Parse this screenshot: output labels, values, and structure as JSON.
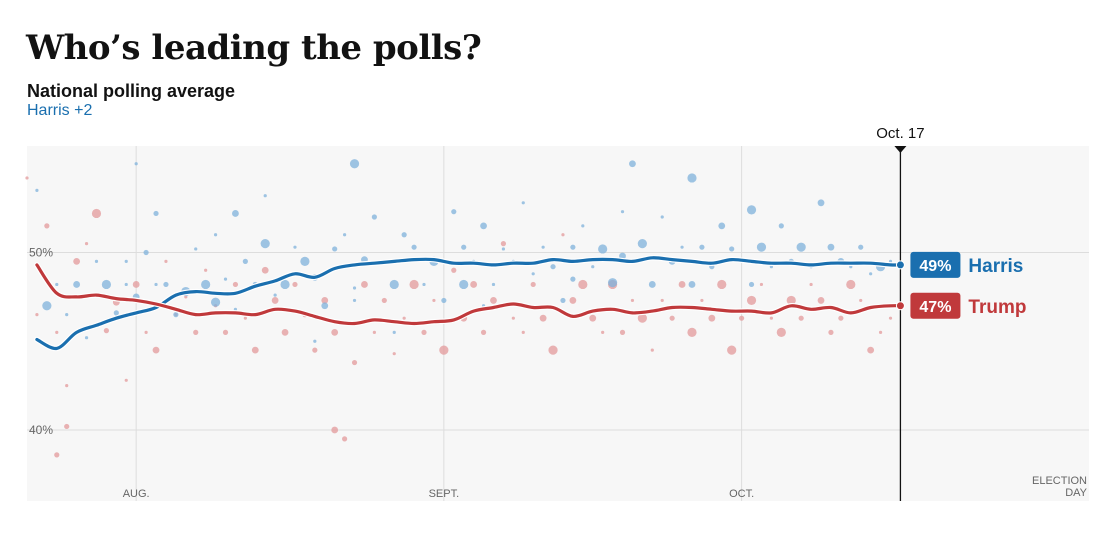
{
  "header": {
    "title": "Who’s leading the polls?",
    "subtitle": "National polling average",
    "leader": "Harris +2"
  },
  "colors": {
    "harris": "#1a6faf",
    "trump": "#c0393b",
    "harris_dot": "#7fb2db",
    "trump_dot": "#e39a9b",
    "background": "#f7f7f7",
    "grid": "#dddddd"
  },
  "chart_data": {
    "type": "line",
    "title": "Who’s leading the polls?",
    "subtitle": "National polling average",
    "x_unit": "days from Jul 21, 2024",
    "x_range": [
      0,
      107
    ],
    "ylim": [
      36,
      56
    ],
    "y_ticks": [
      {
        "value": 40,
        "label": "40%"
      },
      {
        "value": 50,
        "label": "50%"
      }
    ],
    "x_ticks": [
      {
        "day": 11,
        "label": "AUG."
      },
      {
        "day": 42,
        "label": "SEPT."
      },
      {
        "day": 72,
        "label": "OCT."
      }
    ],
    "end_label": [
      "ELECTION",
      "DAY"
    ],
    "today": {
      "day": 88,
      "label": "Oct. 17"
    },
    "grid": true,
    "series": [
      {
        "name": "Harris",
        "key": "harris",
        "final_label": "49%",
        "x": [
          1,
          3,
          5,
          7,
          9,
          11,
          13,
          15,
          17,
          19,
          21,
          23,
          25,
          27,
          29,
          31,
          33,
          35,
          37,
          39,
          41,
          43,
          45,
          47,
          49,
          51,
          53,
          55,
          57,
          59,
          61,
          63,
          65,
          67,
          69,
          71,
          73,
          75,
          77,
          79,
          81,
          83,
          85,
          87,
          88
        ],
        "values": [
          45.1,
          44.6,
          45.5,
          45.9,
          46.3,
          46.6,
          46.9,
          47.6,
          47.8,
          47.7,
          47.7,
          48.1,
          48.4,
          48.8,
          48.6,
          49.1,
          49.3,
          49.4,
          49.5,
          49.6,
          49.6,
          49.4,
          49.4,
          49.3,
          49.4,
          49.4,
          49.6,
          49.5,
          49.6,
          49.6,
          49.5,
          49.7,
          49.6,
          49.5,
          49.4,
          49.6,
          49.5,
          49.4,
          49.4,
          49.3,
          49.4,
          49.4,
          49.4,
          49.3,
          49.3
        ]
      },
      {
        "name": "Trump",
        "key": "trump",
        "final_label": "47%",
        "x": [
          1,
          3,
          5,
          7,
          9,
          11,
          13,
          15,
          17,
          19,
          21,
          23,
          25,
          27,
          29,
          31,
          33,
          35,
          37,
          39,
          41,
          43,
          45,
          47,
          49,
          51,
          53,
          55,
          57,
          59,
          61,
          63,
          65,
          67,
          69,
          71,
          73,
          75,
          77,
          79,
          81,
          83,
          85,
          87,
          88
        ],
        "values": [
          49.3,
          47.7,
          47.5,
          47.6,
          47.4,
          47.3,
          47.1,
          46.8,
          46.5,
          46.6,
          46.6,
          46.5,
          46.8,
          46.7,
          46.4,
          46.1,
          46.0,
          46.2,
          46.1,
          46.0,
          46.1,
          46.2,
          46.7,
          46.9,
          47.1,
          46.9,
          46.9,
          46.4,
          46.7,
          46.8,
          46.6,
          46.7,
          46.9,
          46.9,
          46.8,
          46.7,
          46.7,
          46.6,
          47.0,
          46.8,
          46.9,
          46.6,
          46.9,
          47.0,
          47.0
        ]
      }
    ],
    "polls": {
      "harris": [
        [
          1,
          53.5
        ],
        [
          2,
          47
        ],
        [
          3,
          48.2
        ],
        [
          4,
          46.5
        ],
        [
          5,
          48.2
        ],
        [
          6,
          45.2
        ],
        [
          7,
          49.5
        ],
        [
          8,
          48.2
        ],
        [
          9,
          46.6
        ],
        [
          10,
          49.5
        ],
        [
          10,
          48.2
        ],
        [
          11,
          47.5
        ],
        [
          11,
          55
        ],
        [
          12,
          50
        ],
        [
          13,
          52.2
        ],
        [
          13,
          48.2
        ],
        [
          14,
          48.2
        ],
        [
          15,
          46.5
        ],
        [
          16,
          47.8
        ],
        [
          17,
          50.2
        ],
        [
          18,
          48.2
        ],
        [
          19,
          51
        ],
        [
          19,
          47.2
        ],
        [
          20,
          48.5
        ],
        [
          21,
          52.2
        ],
        [
          21,
          46.8
        ],
        [
          22,
          49.5
        ],
        [
          23,
          48.2
        ],
        [
          24,
          53.2
        ],
        [
          24,
          50.5
        ],
        [
          25,
          47.6
        ],
        [
          26,
          48.2
        ],
        [
          27,
          50.3
        ],
        [
          28,
          49.5
        ],
        [
          29,
          48.6
        ],
        [
          30,
          47
        ],
        [
          31,
          50.2
        ],
        [
          32,
          51
        ],
        [
          33,
          55
        ],
        [
          33,
          48
        ],
        [
          34,
          49.6
        ],
        [
          35,
          52
        ],
        [
          36,
          49.5
        ],
        [
          37,
          48.2
        ],
        [
          38,
          51
        ],
        [
          39,
          50.3
        ],
        [
          40,
          48.2
        ],
        [
          41,
          49.5
        ],
        [
          42,
          47.3
        ],
        [
          43,
          52.3
        ],
        [
          44,
          50.3
        ],
        [
          44,
          48.2
        ],
        [
          45,
          49.5
        ],
        [
          46,
          51.5
        ],
        [
          46,
          47
        ],
        [
          47,
          48.2
        ],
        [
          48,
          50.2
        ],
        [
          49,
          49.5
        ],
        [
          50,
          52.8
        ],
        [
          51,
          48.8
        ],
        [
          52,
          50.3
        ],
        [
          53,
          49.2
        ],
        [
          54,
          47.3
        ],
        [
          55,
          50.3
        ],
        [
          55,
          48.5
        ],
        [
          56,
          51.5
        ],
        [
          57,
          49.2
        ],
        [
          58,
          50.2
        ],
        [
          59,
          48.3
        ],
        [
          60,
          52.3
        ],
        [
          60,
          49.8
        ],
        [
          61,
          55
        ],
        [
          62,
          50.5
        ],
        [
          63,
          48.2
        ],
        [
          64,
          52
        ],
        [
          65,
          49.5
        ],
        [
          66,
          50.3
        ],
        [
          67,
          54.2
        ],
        [
          67,
          48.2
        ],
        [
          68,
          50.3
        ],
        [
          69,
          49.2
        ],
        [
          70,
          51.5
        ],
        [
          71,
          50.2
        ],
        [
          72,
          49.6
        ],
        [
          73,
          52.4
        ],
        [
          73,
          48.2
        ],
        [
          74,
          50.3
        ],
        [
          75,
          49.2
        ],
        [
          76,
          51.5
        ],
        [
          77,
          49.5
        ],
        [
          78,
          50.3
        ],
        [
          79,
          49.2
        ],
        [
          80,
          52.8
        ],
        [
          81,
          50.3
        ],
        [
          82,
          49.5
        ],
        [
          83,
          49.2
        ],
        [
          84,
          50.3
        ],
        [
          85,
          48.8
        ],
        [
          86,
          49.2
        ],
        [
          87,
          49.5
        ],
        [
          29,
          45
        ],
        [
          37,
          45.5
        ],
        [
          33,
          47.3
        ]
      ],
      "trump": [
        [
          0,
          54.2
        ],
        [
          1,
          46.5
        ],
        [
          2,
          51.5
        ],
        [
          3,
          45.5
        ],
        [
          4,
          42.5
        ],
        [
          5,
          49.5
        ],
        [
          6,
          50.5
        ],
        [
          7,
          52.2
        ],
        [
          8,
          45.6
        ],
        [
          9,
          47.2
        ],
        [
          10,
          42.8
        ],
        [
          11,
          48.2
        ],
        [
          12,
          45.5
        ],
        [
          13,
          44.5
        ],
        [
          14,
          49.5
        ],
        [
          15,
          46.5
        ],
        [
          16,
          47.5
        ],
        [
          17,
          45.5
        ],
        [
          18,
          49
        ],
        [
          19,
          47
        ],
        [
          20,
          45.5
        ],
        [
          21,
          48.2
        ],
        [
          22,
          46.3
        ],
        [
          23,
          44.5
        ],
        [
          24,
          49
        ],
        [
          25,
          47.3
        ],
        [
          26,
          45.5
        ],
        [
          27,
          48.2
        ],
        [
          28,
          46.5
        ],
        [
          29,
          44.5
        ],
        [
          30,
          47.3
        ],
        [
          31,
          45.5
        ],
        [
          32,
          39.5
        ],
        [
          33,
          43.8
        ],
        [
          34,
          48.2
        ],
        [
          35,
          45.5
        ],
        [
          36,
          47.3
        ],
        [
          37,
          44.3
        ],
        [
          38,
          46.3
        ],
        [
          39,
          48.2
        ],
        [
          40,
          45.5
        ],
        [
          41,
          47.3
        ],
        [
          42,
          44.5
        ],
        [
          43,
          49
        ],
        [
          44,
          46.3
        ],
        [
          45,
          48.2
        ],
        [
          46,
          45.5
        ],
        [
          47,
          47.3
        ],
        [
          48,
          50.5
        ],
        [
          49,
          46.3
        ],
        [
          50,
          45.5
        ],
        [
          51,
          48.2
        ],
        [
          52,
          46.3
        ],
        [
          53,
          44.5
        ],
        [
          54,
          51
        ],
        [
          55,
          47.3
        ],
        [
          56,
          48.2
        ],
        [
          57,
          46.3
        ],
        [
          58,
          45.5
        ],
        [
          59,
          48.2
        ],
        [
          60,
          45.5
        ],
        [
          61,
          47.3
        ],
        [
          62,
          46.3
        ],
        [
          63,
          44.5
        ],
        [
          64,
          47.3
        ],
        [
          65,
          46.3
        ],
        [
          66,
          48.2
        ],
        [
          67,
          45.5
        ],
        [
          68,
          47.3
        ],
        [
          69,
          46.3
        ],
        [
          70,
          48.2
        ],
        [
          71,
          44.5
        ],
        [
          72,
          46.3
        ],
        [
          73,
          47.3
        ],
        [
          74,
          48.2
        ],
        [
          75,
          46.3
        ],
        [
          76,
          45.5
        ],
        [
          77,
          47.3
        ],
        [
          78,
          46.3
        ],
        [
          79,
          48.2
        ],
        [
          80,
          47.3
        ],
        [
          81,
          45.5
        ],
        [
          82,
          46.3
        ],
        [
          83,
          48.2
        ],
        [
          84,
          47.3
        ],
        [
          85,
          44.5
        ],
        [
          86,
          45.5
        ],
        [
          87,
          46.3
        ],
        [
          3,
          38.6
        ],
        [
          4,
          40.2
        ],
        [
          31,
          40
        ]
      ]
    }
  }
}
